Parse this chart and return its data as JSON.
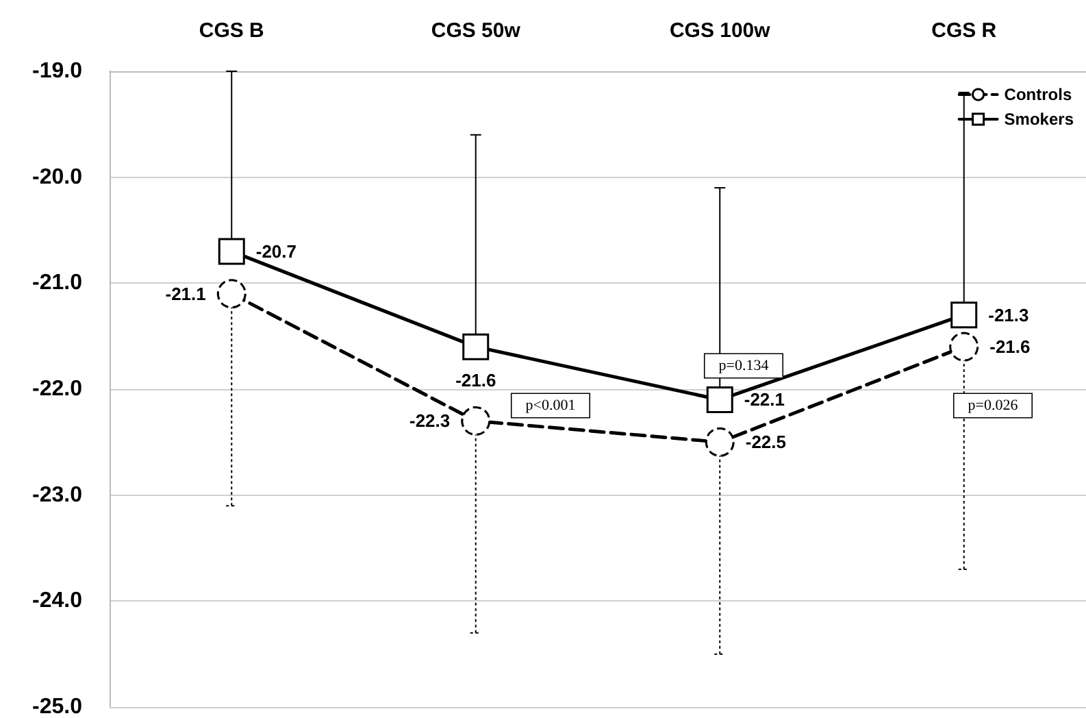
{
  "chart_data": {
    "type": "line",
    "categories": [
      "CGS B",
      "CGS 50w",
      "CGS 100w",
      "CGS R"
    ],
    "series": [
      {
        "name": "Controls",
        "color": "#000000",
        "values": [
          -21.1,
          -22.3,
          -22.5,
          -21.6
        ],
        "errors": [
          [
            -23.1,
            -21.1
          ],
          [
            -24.3,
            -22.3
          ],
          [
            -24.5,
            -22.5
          ],
          [
            -23.7,
            -21.6
          ]
        ],
        "marker": "circle",
        "line_style": "dashed"
      },
      {
        "name": "Smokers",
        "color": "#000000",
        "values": [
          -20.7,
          -21.6,
          -22.1,
          -21.3
        ],
        "errors": [
          [
            -20.7,
            -19.0
          ],
          [
            -21.6,
            -19.6
          ],
          [
            -22.1,
            -20.1
          ],
          [
            -21.3,
            -19.2
          ]
        ],
        "marker": "square",
        "line_style": "solid"
      }
    ],
    "ylim": [
      -25,
      -19
    ],
    "yticks": [
      {
        "value": -25,
        "label": "-25.0"
      },
      {
        "value": -24,
        "label": "-24.0"
      },
      {
        "value": -23,
        "label": "-23.0"
      },
      {
        "value": -22,
        "label": "-22.0"
      },
      {
        "value": -21,
        "label": "-21.0"
      },
      {
        "value": -20,
        "label": "-20.0"
      },
      {
        "value": -19,
        "label": "-19.0"
      }
    ],
    "grid": "y",
    "legend": "top right",
    "data_labels": true,
    "annotations": [
      "p<0.001",
      "p=0.134",
      "p=0.026"
    ]
  }
}
